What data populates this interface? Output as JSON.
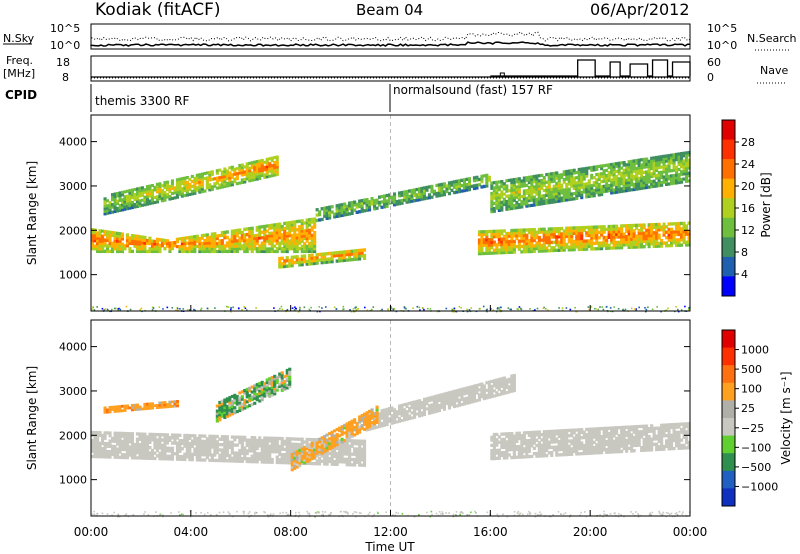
{
  "header": {
    "station": "Kodiak (fitACF)",
    "beam": "Beam 04",
    "date": "06/Apr/2012"
  },
  "top_panels": {
    "nsky_label": "N.Sky",
    "nsky_ticks": [
      "10^5",
      "10^0"
    ],
    "nsearch_label": "N.Search",
    "nsearch_ticks": [
      "10^5",
      "10^0"
    ],
    "freq_label_1": "Freq.",
    "freq_label_2": "[MHz]",
    "freq_ticks": [
      "18",
      "8"
    ],
    "nave_label": "Nave",
    "nave_ticks": [
      "60",
      "0"
    ],
    "cpid_label": "CPID",
    "cpid_segments": [
      {
        "label": "themis 3300 RF",
        "start_hour": 0
      },
      {
        "label": "normalsound (fast) 157 RF",
        "start_hour": 12
      }
    ]
  },
  "power_panel": {
    "ylabel": "Slant Range [km]",
    "yticks": [
      "4000",
      "3000",
      "2000",
      "1000"
    ],
    "colorbar_label": "Power [dB]",
    "colorbar_ticks": [
      "28",
      "24",
      "20",
      "16",
      "12",
      "8",
      "4"
    ]
  },
  "velocity_panel": {
    "ylabel": "Slant Range [km]",
    "yticks": [
      "4000",
      "3000",
      "2000",
      "1000"
    ],
    "colorbar_label": "Velocity [m s⁻¹]",
    "colorbar_ticks": [
      "1000",
      "500",
      "100",
      "25",
      "−25",
      "−100",
      "−500",
      "−1000"
    ]
  },
  "xaxis": {
    "label": "Time UT",
    "ticks": [
      "00:00",
      "04:00",
      "08:00",
      "12:00",
      "16:00",
      "20:00",
      "00:00"
    ]
  },
  "colors": {
    "power_scale": [
      "#0000ff",
      "#1f5fb0",
      "#3f8f60",
      "#6fbf3f",
      "#b0d020",
      "#ffb000",
      "#ff7000",
      "#ff3000",
      "#e00000"
    ],
    "velocity_scale": [
      "#1030c0",
      "#2060c0",
      "#2f8f4f",
      "#5fd02f",
      "#c8c8c0",
      "#b0b0a8",
      "#ffa020",
      "#ff7010",
      "#ff3000",
      "#e00000"
    ]
  },
  "chart_data": [
    {
      "type": "heatmap",
      "title": "Power",
      "xlabel": "Time UT",
      "ylabel": "Slant Range [km]",
      "xlim": [
        0,
        24
      ],
      "ylim": [
        180,
        4600
      ],
      "zlim": [
        0,
        30
      ],
      "zlabel": "Power [dB]",
      "features": [
        {
          "t": [
            0,
            9
          ],
          "range_start": [
            1500,
            1500
          ],
          "range_end": [
            1250,
            2000
          ],
          "power_db": [
            22,
            20
          ]
        },
        {
          "t": [
            0.5,
            7.5
          ],
          "range_start": [
            2350,
            3250
          ],
          "width_km": 450,
          "power_db": [
            12,
            22
          ]
        },
        {
          "t": [
            7.5,
            11
          ],
          "range_start": [
            1150,
            1350
          ],
          "width_km": 250,
          "power_db": 20
        },
        {
          "t": [
            9,
            16
          ],
          "range_start": [
            2200,
            3000
          ],
          "width_km": 300,
          "power_db": 12
        },
        {
          "t": [
            15.5,
            24
          ],
          "range_start": [
            1450,
            1650
          ],
          "width_km": 550,
          "power_db": 22
        },
        {
          "t": [
            16,
            24
          ],
          "range_start": [
            2400,
            3100
          ],
          "width_km": 700,
          "power_db": 14
        }
      ]
    },
    {
      "type": "heatmap",
      "title": "Velocity",
      "xlabel": "Time UT",
      "ylabel": "Slant Range [km]",
      "xlim": [
        0,
        24
      ],
      "ylim": [
        180,
        4600
      ],
      "zlim": [
        -1000,
        1000
      ],
      "zlabel": "Velocity [m s⁻¹]",
      "features": [
        {
          "t": [
            0,
            11
          ],
          "range_start": [
            1500,
            1300
          ],
          "width_km": 600,
          "velocity": 0
        },
        {
          "t": [
            11,
            17
          ],
          "range_start": [
            2100,
            3000
          ],
          "width_km": 400,
          "velocity": 0
        },
        {
          "t": [
            0.5,
            3.5
          ],
          "range_start": [
            2500,
            2650
          ],
          "width_km": 150,
          "velocity": -300
        },
        {
          "t": [
            5,
            8
          ],
          "range_start": [
            2300,
            3100
          ],
          "width_km": 450,
          "velocity": 80
        },
        {
          "t": [
            8,
            11.5
          ],
          "range_start": [
            1200,
            2300
          ],
          "width_km": 400,
          "velocity": -200
        },
        {
          "t": [
            16,
            24
          ],
          "range_start": [
            1450,
            1700
          ],
          "width_km": 600,
          "velocity": 0
        }
      ]
    }
  ]
}
